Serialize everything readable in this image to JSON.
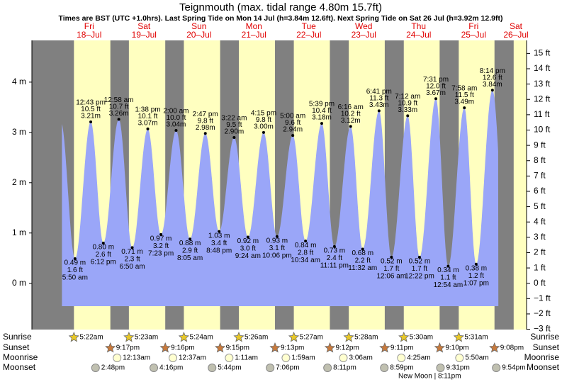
{
  "header": {
    "title": "Teignmouth (max. tidal range 4.80m 15.7ft)",
    "subtitle": "Times are BST (UTC +1.0hrs). Last Spring Tide on Mon 14 Jul (h=3.84m 12.6ft). Next Spring Tide on Sat 26 Jul (h=3.92m 12.9ft)"
  },
  "chart_data": {
    "type": "tide",
    "ylim": [
      -0.92,
      4.83
    ],
    "yticks": [
      {
        "value": 0,
        "label": "0 m"
      },
      {
        "value": 1,
        "label": "1 m"
      },
      {
        "value": 2,
        "label": "2 m"
      },
      {
        "value": 3,
        "label": "3 m"
      },
      {
        "value": 4,
        "label": "4 m"
      }
    ],
    "y2lim": [
      -3.02,
      15.85
    ],
    "y2ticks": [
      {
        "value": -3,
        "label": "−3 ft"
      },
      {
        "value": -2,
        "label": "−2 ft"
      },
      {
        "value": -1,
        "label": "−1 ft"
      },
      {
        "value": 0,
        "label": "0 ft"
      },
      {
        "value": 1,
        "label": "1 ft"
      },
      {
        "value": 2,
        "label": "2 ft"
      },
      {
        "value": 3,
        "label": "3 ft"
      },
      {
        "value": 4,
        "label": "4 ft"
      },
      {
        "value": 5,
        "label": "5 ft"
      },
      {
        "value": 6,
        "label": "6 ft"
      },
      {
        "value": 7,
        "label": "7 ft"
      },
      {
        "value": 8,
        "label": "8 ft"
      },
      {
        "value": 9,
        "label": "9 ft"
      },
      {
        "value": 10,
        "label": "10 ft"
      },
      {
        "value": 11,
        "label": "11 ft"
      },
      {
        "value": 12,
        "label": "12 ft"
      },
      {
        "value": 13,
        "label": "13 ft"
      },
      {
        "value": 14,
        "label": "14 ft"
      },
      {
        "value": 15,
        "label": "15 ft"
      }
    ],
    "rows": [
      "Sunrise",
      "Sunset",
      "Moonrise",
      "Moonset"
    ],
    "days": [
      {
        "name": "Fri",
        "date": "18–Jul",
        "sunrise": "5:22am",
        "sunset": "9:17pm",
        "moonset": "2:48pm",
        "tides": [
          {
            "time": "5:50 am",
            "m": 0.49,
            "m_label": "0.49 m",
            "ft_label": "1.6 ft"
          },
          {
            "time": "12:43 pm",
            "m": 3.21,
            "m_label": "3.21m",
            "ft_label": "10.5 ft"
          },
          {
            "time": "6:12 pm",
            "m": 0.8,
            "m_label": "0.80 m",
            "ft_label": "2.6 ft"
          }
        ]
      },
      {
        "name": "Sat",
        "date": "19–Jul",
        "sunrise": "5:23am",
        "sunset": "9:16pm",
        "moonrise": "12:13am",
        "moonset": "4:16pm",
        "tides": [
          {
            "time": "12:58 am",
            "m": 3.26,
            "m_label": "3.26m",
            "ft_label": "10.7 ft"
          },
          {
            "time": "6:50 am",
            "m": 0.71,
            "m_label": "0.71 m",
            "ft_label": "2.3 ft"
          },
          {
            "time": "1:38 pm",
            "m": 3.07,
            "m_label": "3.07m",
            "ft_label": "10.1 ft"
          },
          {
            "time": "7:23 pm",
            "m": 0.97,
            "m_label": "0.97 m",
            "ft_label": "3.2 ft"
          }
        ]
      },
      {
        "name": "Sun",
        "date": "20–Jul",
        "sunrise": "5:24am",
        "sunset": "9:15pm",
        "moonrise": "12:37am",
        "moonset": "5:44pm",
        "tides": [
          {
            "time": "2:00 am",
            "m": 3.04,
            "m_label": "3.04m",
            "ft_label": "10.0 ft"
          },
          {
            "time": "8:05 am",
            "m": 0.88,
            "m_label": "0.88 m",
            "ft_label": "2.9 ft"
          },
          {
            "time": "2:47 pm",
            "m": 2.98,
            "m_label": "2.98m",
            "ft_label": "9.8 ft"
          },
          {
            "time": "8:48 pm",
            "m": 1.03,
            "m_label": "1.03 m",
            "ft_label": "3.4 ft"
          }
        ]
      },
      {
        "name": "Mon",
        "date": "21–Jul",
        "sunrise": "5:26am",
        "sunset": "9:13pm",
        "moonrise": "1:11am",
        "moonset": "7:06pm",
        "tides": [
          {
            "time": "3:22 am",
            "m": 2.9,
            "m_label": "2.90m",
            "ft_label": "9.5 ft"
          },
          {
            "time": "9:24 am",
            "m": 0.92,
            "m_label": "0.92 m",
            "ft_label": "3.0 ft"
          },
          {
            "time": "4:15 pm",
            "m": 3.0,
            "m_label": "3.00m",
            "ft_label": "9.8 ft"
          },
          {
            "time": "10:06 pm",
            "m": 0.93,
            "m_label": "0.93 m",
            "ft_label": "3.1 ft"
          }
        ]
      },
      {
        "name": "Tue",
        "date": "22–Jul",
        "sunrise": "5:27am",
        "sunset": "9:12pm",
        "moonrise": "1:59am",
        "moonset": "8:11pm",
        "tides": [
          {
            "time": "5:00 am",
            "m": 2.94,
            "m_label": "2.94m",
            "ft_label": "9.6 ft"
          },
          {
            "time": "10:34 am",
            "m": 0.84,
            "m_label": "0.84 m",
            "ft_label": "2.8 ft"
          },
          {
            "time": "5:39 pm",
            "m": 3.18,
            "m_label": "3.18m",
            "ft_label": "10.4 ft"
          },
          {
            "time": "11:11 pm",
            "m": 0.73,
            "m_label": "0.73 m",
            "ft_label": "2.4 ft"
          }
        ]
      },
      {
        "name": "Wed",
        "date": "23–Jul",
        "sunrise": "5:28am",
        "sunset": "9:11pm",
        "moonrise": "3:06am",
        "moonset": "8:59pm",
        "tides": [
          {
            "time": "6:16 am",
            "m": 3.12,
            "m_label": "3.12m",
            "ft_label": "10.2 ft"
          },
          {
            "time": "11:32 am",
            "m": 0.68,
            "m_label": "0.68 m",
            "ft_label": "2.2 ft"
          },
          {
            "time": "6:41 pm",
            "m": 3.43,
            "m_label": "3.43m",
            "ft_label": "11.3 ft"
          }
        ]
      },
      {
        "name": "Thu",
        "date": "24–Jul",
        "sunrise": "5:30am",
        "sunset": "9:10pm",
        "moonrise": "4:25am",
        "moonset": "9:31pm",
        "tides": [
          {
            "time": "12:06 am",
            "m": 0.52,
            "m_label": "0.52 m",
            "ft_label": "1.7 ft"
          },
          {
            "time": "7:12 am",
            "m": 3.33,
            "m_label": "3.33m",
            "ft_label": "10.9 ft"
          },
          {
            "time": "12:22 pm",
            "m": 0.52,
            "m_label": "0.52 m",
            "ft_label": "1.7 ft"
          },
          {
            "time": "7:31 pm",
            "m": 3.67,
            "m_label": "3.67m",
            "ft_label": "12.0 ft"
          }
        ]
      },
      {
        "name": "Fri",
        "date": "25–Jul",
        "sunrise": "5:31am",
        "sunset": "9:08pm",
        "moonrise": "5:50am",
        "moonset": "9:54pm",
        "tides": [
          {
            "time": "12:54 am",
            "m": 0.34,
            "m_label": "0.34 m",
            "ft_label": "1.1 ft"
          },
          {
            "time": "7:58 am",
            "m": 3.49,
            "m_label": "3.49m",
            "ft_label": "11.5 ft"
          },
          {
            "time": "1:07 pm",
            "m": 0.38,
            "m_label": "0.38 m",
            "ft_label": "1.2 ft"
          },
          {
            "time": "8:14 pm",
            "m": 3.84,
            "m_label": "3.84m",
            "ft_label": "12.6 ft"
          }
        ]
      },
      {
        "name": "Sat",
        "date": "26–Jul",
        "tides": []
      }
    ],
    "note": "New Moon | 8:11pm"
  }
}
